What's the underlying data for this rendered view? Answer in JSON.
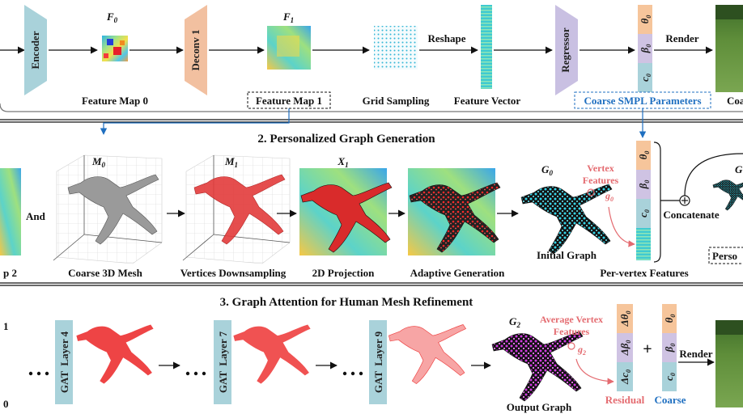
{
  "section1": {
    "encoder": "Encoder",
    "f0": "F",
    "f0_sub": "0",
    "deconv": "Deconv 1",
    "f1": "F",
    "f1_sub": "1",
    "reshape": "Reshape",
    "regressor": "Regressor",
    "render": "Render",
    "theta0": "θ",
    "theta0_sub": "0",
    "beta0": "β",
    "beta0_sub": "0",
    "c0": "c",
    "c0_sub": "0",
    "feature_map_0": "Feature Map 0",
    "feature_map_1": "Feature Map 1",
    "grid_sampling": "Grid Sampling",
    "feature_vector": "Feature Vector",
    "coarse_smpl": "Coarse SMPL Parameters",
    "coarse_cut": "Coa"
  },
  "section2": {
    "title": "2. Personalized Graph Generation",
    "and": "And",
    "map2_cut": "p 2",
    "m0": "M",
    "m0_sub": "0",
    "m1": "M",
    "m1_sub": "1",
    "x1": "X",
    "x1_sub": "1",
    "g0": "G",
    "g0_sub": "0",
    "vertex_features_line1": "Vertex",
    "vertex_features_line2": "Features",
    "g0_small": "g",
    "g0_small_sub": "0",
    "coarse_3d_mesh": "Coarse 3D Mesh",
    "vertices_downsampling": "Vertices Downsampling",
    "projection_2d": "2D Projection",
    "adaptive_generation": "Adaptive Generation",
    "initial_graph": "Initial Graph",
    "concatenate": "Concatenate",
    "per_vertex_features": "Per-vertex Features",
    "person_cut": "Perso",
    "g_cut": "G"
  },
  "section3": {
    "title": "3. Graph Attention for Human Mesh Refinement",
    "left_top": "1",
    "left_bottom": "0",
    "layer4": "GAT  Layer 4",
    "layer7": "GAT  Layer 7",
    "layer9": "GAT  Layer 9",
    "g2": "G",
    "g2_sub": "2",
    "avg_vertex_line1": "Average Vertex",
    "avg_vertex_line2": "Features",
    "g2_small": "g",
    "g2_small_sub": "2",
    "output_graph": "Output Graph",
    "d_theta0": "Δθ",
    "d_theta0_sub": "0",
    "d_beta0": "Δβ",
    "d_beta0_sub": "0",
    "d_c0": "Δc",
    "d_c0_sub": "0",
    "plus": "+",
    "render": "Render",
    "residual": "Residual",
    "coarse": "Coarse",
    "theta0": "θ",
    "theta0_sub": "0",
    "beta0": "β",
    "beta0_sub": "0",
    "c0": "c",
    "c0_sub": "0"
  },
  "colors": {
    "encoder": "#a9d2da",
    "deconv": "#f2c0a0",
    "regressor": "#c9c0e2",
    "param_orange": "#f6c59b",
    "param_purple": "#cfc3e3",
    "param_blue": "#a9d2da",
    "graph_cyan": "#36c6d6",
    "graph_magenta": "#b52ac4",
    "mesh_red": "#ee4445",
    "accent_blue": "#1f6fc0",
    "accent_pink": "#e46b70"
  }
}
